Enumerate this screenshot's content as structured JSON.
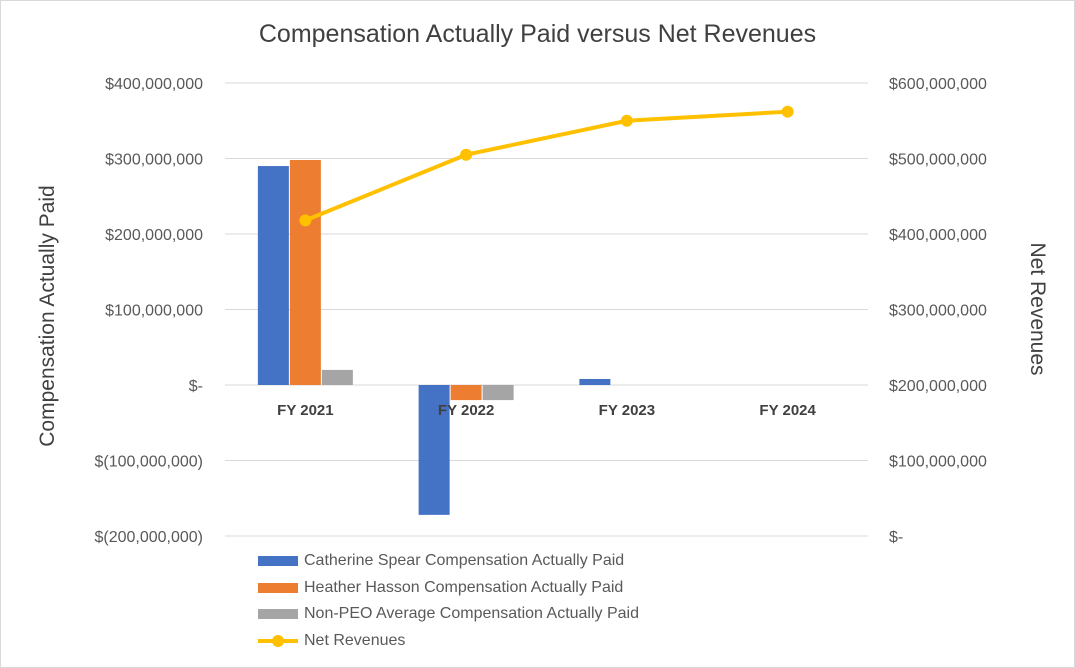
{
  "chart_data": {
    "type": "bar",
    "title": "Compensation Actually Paid versus Net Revenues",
    "categories": [
      "FY 2021",
      "FY 2022",
      "FY 2023",
      "FY 2024"
    ],
    "y_left": {
      "label": "Compensation Actually Paid",
      "ylim": [
        -200000000,
        400000000
      ],
      "ticks": [
        400000000,
        300000000,
        200000000,
        100000000,
        0,
        -100000000,
        -200000000
      ],
      "tick_labels": [
        "$400,000,000",
        "$300,000,000",
        "$200,000,000",
        "$100,000,000",
        "$-",
        "$(100,000,000)",
        "$(200,000,000)"
      ]
    },
    "y_right": {
      "label": "Net Revenues",
      "ylim": [
        0,
        600000000
      ],
      "ticks": [
        600000000,
        500000000,
        400000000,
        300000000,
        200000000,
        100000000,
        0
      ],
      "tick_labels": [
        "$600,000,000",
        "$500,000,000",
        "$400,000,000",
        "$300,000,000",
        "$200,000,000",
        "$100,000,000",
        "$-"
      ]
    },
    "grid": true,
    "legend_position": "bottom",
    "series": [
      {
        "name": "Catherine Spear Compensation Actually Paid",
        "type": "bar",
        "axis": "left",
        "color": "#4472C4",
        "values": [
          290000000,
          -172000000,
          8000000,
          null
        ]
      },
      {
        "name": "Heather Hasson Compensation Actually Paid",
        "type": "bar",
        "axis": "left",
        "color": "#ED7D31",
        "values": [
          298000000,
          -20000000,
          null,
          null
        ]
      },
      {
        "name": "Non-PEO Average Compensation Actually Paid",
        "type": "bar",
        "axis": "left",
        "color": "#A5A5A5",
        "values": [
          20000000,
          -20000000,
          null,
          null
        ]
      },
      {
        "name": "Net Revenues",
        "type": "line",
        "axis": "right",
        "color": "#FFC000",
        "values": [
          418000000,
          505000000,
          550000000,
          562000000
        ]
      }
    ]
  }
}
